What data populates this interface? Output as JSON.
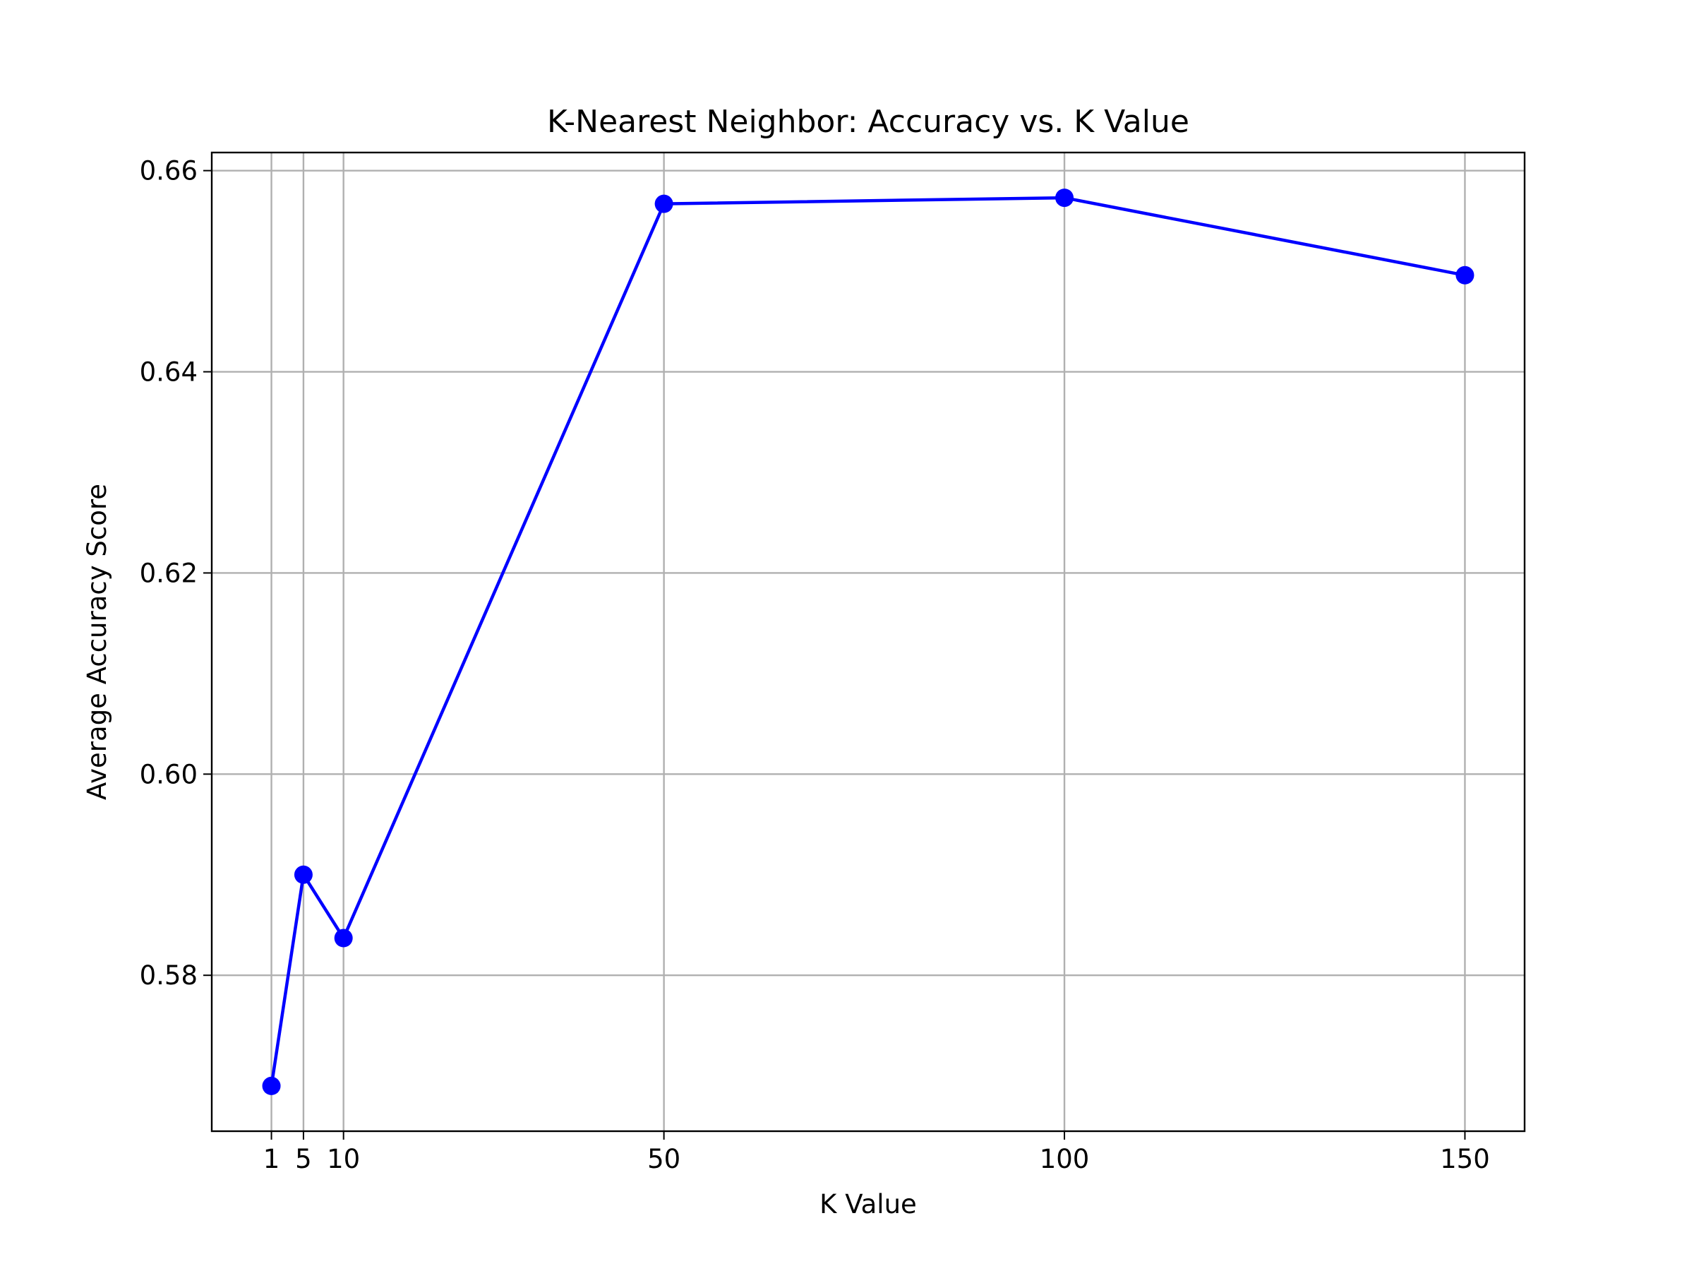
{
  "chart_data": {
    "type": "line",
    "title": "K-Nearest Neighbor: Accuracy vs. K Value",
    "xlabel": "K Value",
    "ylabel": "Average Accuracy Score",
    "x": [
      1,
      5,
      10,
      50,
      100,
      150
    ],
    "series": [
      {
        "values": [
          0.569,
          0.59,
          0.5837,
          0.6567,
          0.6573,
          0.6496
        ],
        "color": "#0000ff",
        "marker": "circle"
      }
    ],
    "xticks": [
      1,
      5,
      10,
      50,
      100,
      150
    ],
    "xtick_labels": [
      "1",
      "5",
      "10",
      "50",
      "100",
      "150"
    ],
    "yticks": [
      0.58,
      0.6,
      0.62,
      0.64,
      0.66
    ],
    "ytick_labels": [
      "0.58",
      "0.60",
      "0.62",
      "0.64",
      "0.66"
    ],
    "xlim": [
      -6.45,
      157.45
    ],
    "ylim": [
      0.5645,
      0.6618
    ],
    "grid": true,
    "legend": false
  }
}
